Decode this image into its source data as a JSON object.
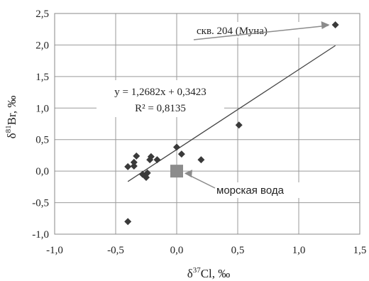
{
  "chart_data": {
    "type": "scatter",
    "xlabel_prefix": "δ",
    "xlabel_sup": "37",
    "xlabel_rest": "Cl, ‰",
    "ylabel_prefix": "δ",
    "ylabel_sup": "81",
    "ylabel_rest": "Br, ‰",
    "xlim": [
      -1.0,
      1.5
    ],
    "ylim": [
      -1.0,
      2.5
    ],
    "x_ticks": [
      "-1,0",
      "-0,5",
      "0,0",
      "0,5",
      "1,0",
      "1,5"
    ],
    "y_ticks": [
      "2,5",
      "2,0",
      "1,5",
      "1,0",
      "0,5",
      "0,0",
      "-0,5",
      "-1,0"
    ],
    "grid": true,
    "points": [
      {
        "x": -0.4,
        "y": 0.07
      },
      {
        "x": -0.35,
        "y": 0.08
      },
      {
        "x": -0.35,
        "y": 0.14
      },
      {
        "x": -0.33,
        "y": 0.24
      },
      {
        "x": -0.28,
        "y": -0.05
      },
      {
        "x": -0.25,
        "y": -0.1
      },
      {
        "x": -0.24,
        "y": -0.03
      },
      {
        "x": -0.22,
        "y": 0.18
      },
      {
        "x": -0.21,
        "y": 0.23
      },
      {
        "x": -0.16,
        "y": 0.18
      },
      {
        "x": 0.0,
        "y": 0.38
      },
      {
        "x": 0.04,
        "y": 0.27
      },
      {
        "x": 0.2,
        "y": 0.18
      },
      {
        "x": 0.51,
        "y": 0.73
      },
      {
        "x": 1.3,
        "y": 2.32
      },
      {
        "x": -0.4,
        "y": -0.8
      }
    ],
    "seawater_point": {
      "x": 0.0,
      "y": 0.0,
      "label": "морская вода"
    },
    "trendline": {
      "slope": 1.2682,
      "intercept": 0.3423,
      "x_range": [
        -0.4,
        1.3
      ]
    },
    "equation_text": "y = 1,2682x + 0,3423",
    "r2_text": "R² = 0,8135",
    "highlight_label": "скв. 204 (Муна)",
    "colors": {
      "points": "#3a3a3a",
      "seawater": "#8c8c8c",
      "trendline": "#444444",
      "arrow": "#8c8c8c",
      "grid": "#9a9a9a"
    }
  }
}
